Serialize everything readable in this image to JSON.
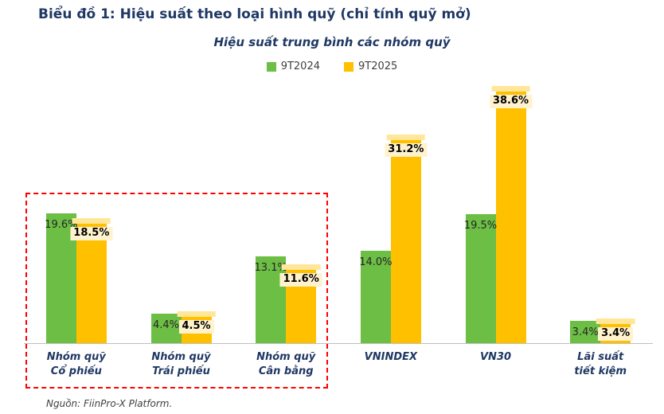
{
  "title": "Biểu đồ 1: Hiệu suất theo loại hình quỹ (chỉ tính quỹ mở)",
  "source": "Nguồn: FiinPro-X Platform.",
  "colors": {
    "title": "#1F3864",
    "axis_label": "#1F3864",
    "series_green": "#6CBE45",
    "series_yellow": "#FFC000",
    "yellow_cap": "#FFE699",
    "label_highlight": "#FFF2CC",
    "highlight_box": "#FF0000",
    "baseline": "#BFBFBF"
  },
  "chart_data": {
    "type": "bar",
    "title": "Hiệu suất trung bình các nhóm quỹ",
    "categories": [
      "Nhóm quỹ Cổ phiếu",
      "Nhóm quỹ Trái phiếu",
      "Nhóm quỹ Cân bằng",
      "VNINDEX",
      "VN30",
      "Lãi suất tiết kiệm"
    ],
    "category_lines": [
      [
        "Nhóm quỹ",
        "Cổ phiếu"
      ],
      [
        "Nhóm quỹ",
        "Trái phiếu"
      ],
      [
        "Nhóm quỹ",
        "Cân bằng"
      ],
      [
        "VNINDEX"
      ],
      [
        "VN30"
      ],
      [
        "Lãi suất",
        "tiết kiệm"
      ]
    ],
    "series": [
      {
        "name": "9T2024",
        "color": "#6CBE45",
        "values": [
          19.6,
          4.4,
          13.1,
          14.0,
          19.5,
          3.4
        ],
        "labels": [
          "19.6%",
          "4.4%",
          "13.1%",
          "14.0%",
          "19.5%",
          "3.4%"
        ]
      },
      {
        "name": "9T2025",
        "color": "#FFC000",
        "values": [
          18.5,
          4.5,
          11.6,
          31.2,
          38.6,
          3.4
        ],
        "labels": [
          "18.5%",
          "4.5%",
          "11.6%",
          "31.2%",
          "38.6%",
          "3.4%"
        ]
      }
    ],
    "xlabel": "",
    "ylabel": "",
    "ylim": [
      0,
      40
    ],
    "grid": false,
    "legend_position": "top",
    "highlight_box_categories": [
      "Nhóm quỹ Cổ phiếu",
      "Nhóm quỹ Trái phiếu",
      "Nhóm quỹ Cân bằng"
    ]
  }
}
